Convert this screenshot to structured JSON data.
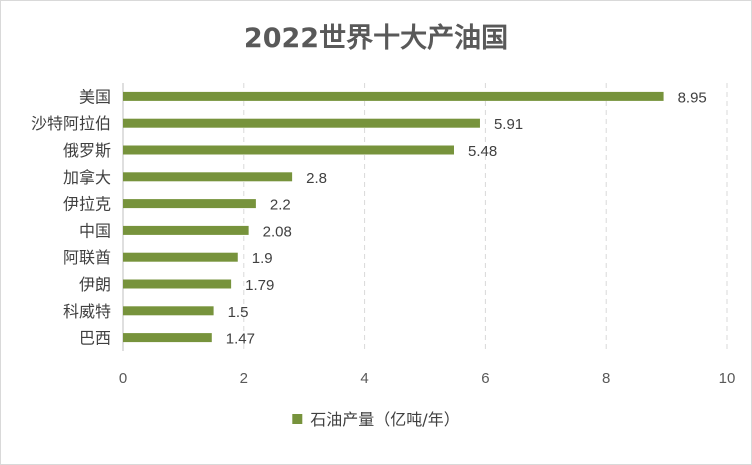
{
  "chart_data": {
    "type": "bar",
    "orientation": "horizontal",
    "title": "2022世界十大产油国",
    "categories": [
      "美国",
      "沙特阿拉伯",
      "俄罗斯",
      "加拿大",
      "伊拉克",
      "中国",
      "阿联酋",
      "伊朗",
      "科威特",
      "巴西"
    ],
    "series": [
      {
        "name": "石油产量（亿吨/年）",
        "values": [
          8.95,
          5.91,
          5.48,
          2.8,
          2.2,
          2.08,
          1.9,
          1.79,
          1.5,
          1.47
        ],
        "color": "#77933c"
      }
    ],
    "xlim": [
      0,
      10
    ],
    "xticks": [
      0,
      2,
      4,
      6,
      8,
      10
    ],
    "grid": true,
    "legend_position": "bottom",
    "data_labels": true
  }
}
